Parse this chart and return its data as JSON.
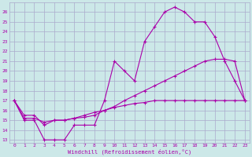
{
  "xlabel": "Windchill (Refroidissement éolien,°C)",
  "background_color": "#cce8e8",
  "grid_color": "#aaaacc",
  "line_color": "#aa00aa",
  "xlim": [
    -0.5,
    23.5
  ],
  "ylim": [
    12.7,
    27.0
  ],
  "xticks": [
    0,
    1,
    2,
    3,
    4,
    5,
    6,
    7,
    8,
    9,
    10,
    11,
    12,
    13,
    14,
    15,
    16,
    17,
    18,
    19,
    20,
    21,
    22,
    23
  ],
  "yticks": [
    13,
    14,
    15,
    16,
    17,
    18,
    19,
    20,
    21,
    22,
    23,
    24,
    25,
    26
  ],
  "line1_x": [
    0,
    1,
    2,
    3,
    4,
    5,
    6,
    7,
    8,
    9,
    10,
    11,
    12,
    13,
    14,
    15,
    16,
    17,
    18,
    19,
    20,
    21,
    22,
    23
  ],
  "line1_y": [
    17,
    15,
    15,
    13,
    13,
    13,
    14.5,
    14.5,
    14.5,
    17,
    21,
    20,
    19,
    23,
    24.5,
    26,
    26.5,
    26,
    25,
    25,
    23.5,
    21,
    19,
    17
  ],
  "line2_x": [
    0,
    1,
    2,
    3,
    4,
    5,
    6,
    7,
    8,
    9,
    10,
    11,
    12,
    13,
    14,
    15,
    16,
    17,
    18,
    19,
    20,
    21,
    22,
    23
  ],
  "line2_y": [
    17,
    15.2,
    15.2,
    14.8,
    15.0,
    15.0,
    15.2,
    15.3,
    15.5,
    16.0,
    16.4,
    17.0,
    17.5,
    18.0,
    18.5,
    19.0,
    19.5,
    20.0,
    20.5,
    21.0,
    21.2,
    21.2,
    21.0,
    17.0
  ],
  "line3_x": [
    0,
    1,
    2,
    3,
    4,
    5,
    6,
    7,
    8,
    9,
    10,
    11,
    12,
    13,
    14,
    15,
    16,
    17,
    18,
    19,
    20,
    21,
    22,
    23
  ],
  "line3_y": [
    17,
    15.5,
    15.5,
    14.5,
    15.0,
    15.0,
    15.2,
    15.5,
    15.8,
    16.0,
    16.3,
    16.5,
    16.7,
    16.8,
    17.0,
    17.0,
    17.0,
    17.0,
    17.0,
    17.0,
    17.0,
    17.0,
    17.0,
    17.0
  ]
}
